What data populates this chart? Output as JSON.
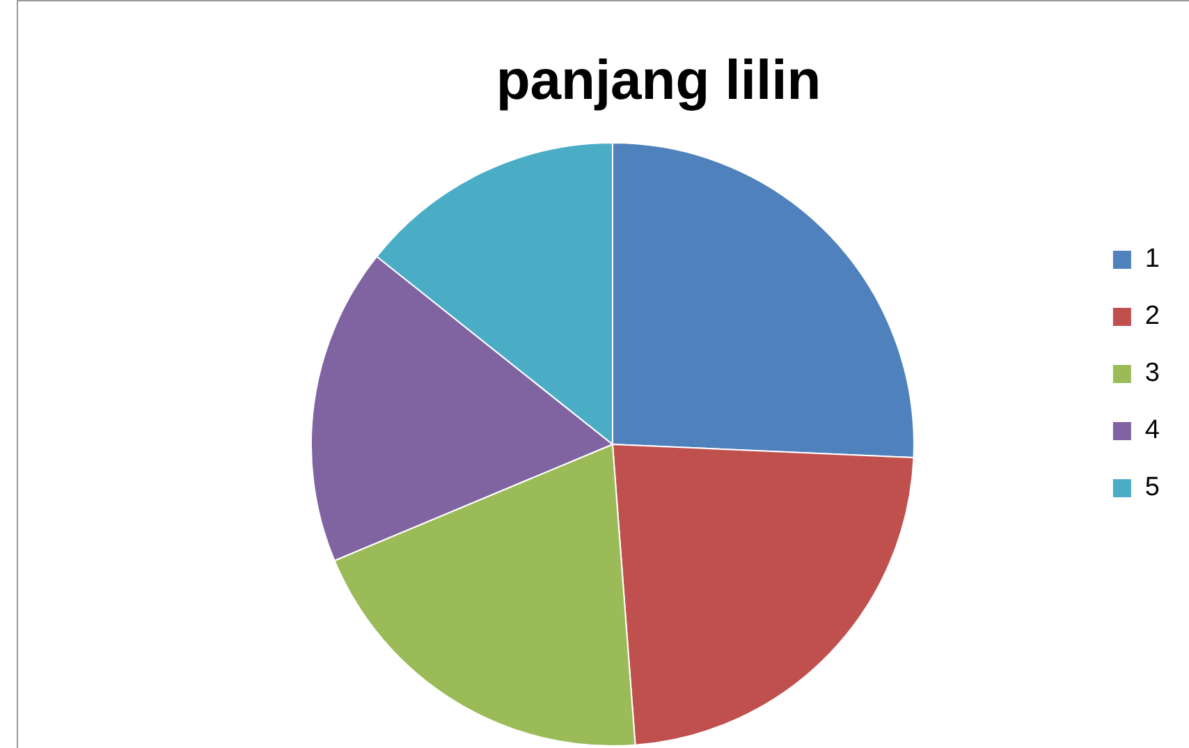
{
  "chart_data": {
    "type": "pie",
    "title": "panjang lilin",
    "categories": [
      "1",
      "2",
      "3",
      "4",
      "5"
    ],
    "values": [
      25.7,
      23.1,
      19.9,
      17.0,
      14.3
    ],
    "colors": [
      "#4f81bd",
      "#c0504d",
      "#9bbb59",
      "#8064a2",
      "#4bacc6"
    ],
    "legend": "right"
  }
}
